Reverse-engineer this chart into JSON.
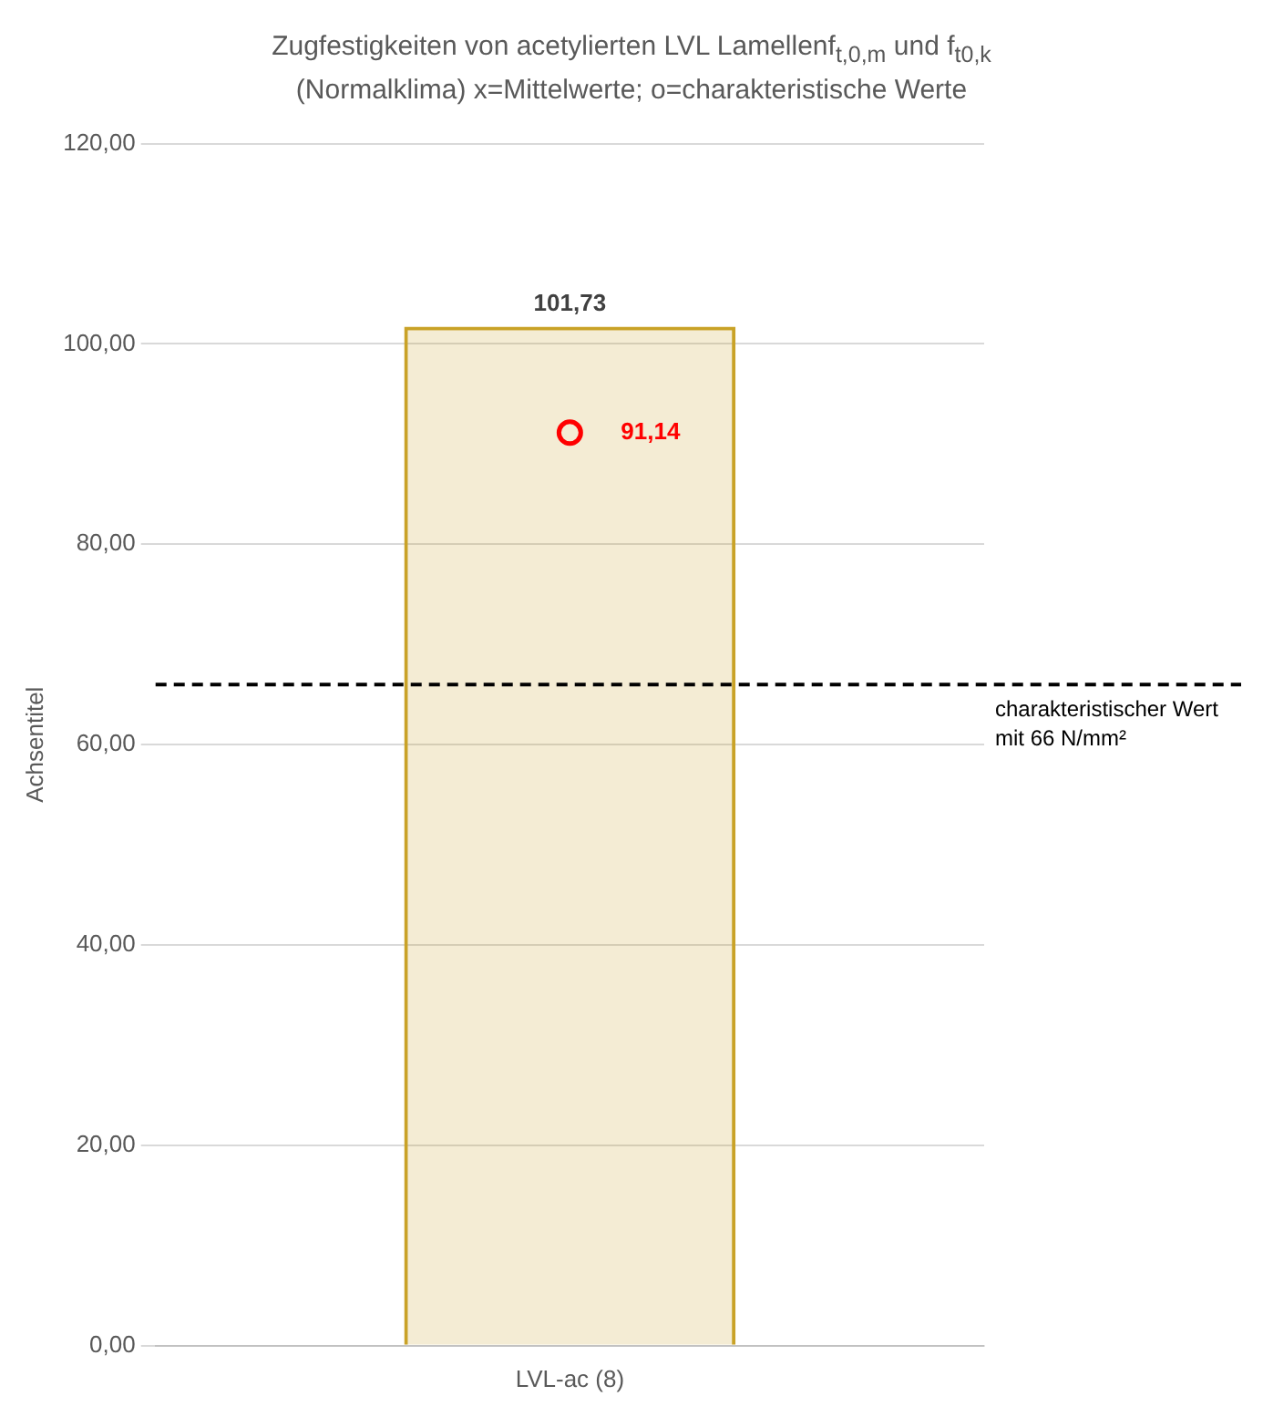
{
  "chart_data": {
    "type": "bar",
    "title": "Zugfestigkeiten von acetylierten LVL Lamellenf$_{t,0,m}$ und f$_{t0,k}$\n(Normalklima) x=Mittelwerte; o=charakteristische Werte",
    "ylabel": "Achsentitel",
    "categories": [
      "LVL-ac (8)"
    ],
    "series": [
      {
        "color": "#c9a227",
        "values": [
          101.73
        ],
        "value_labels": [
          "101,73"
        ]
      },
      {
        "type": "scatter",
        "color": "#ff0000",
        "x": [
          "LVL-ac (8)"
        ],
        "values": [
          91.14
        ],
        "value_labels": [
          "91,14"
        ],
        "marker": "circle"
      }
    ],
    "ylim": [
      0,
      120
    ],
    "yticks": [
      {
        "value": 0,
        "label": "0,00"
      },
      {
        "value": 20,
        "label": "20,00"
      },
      {
        "value": 40,
        "label": "40,00"
      },
      {
        "value": 60,
        "label": "60,00"
      },
      {
        "value": 80,
        "label": "80,00"
      },
      {
        "value": 100,
        "label": "100,00"
      },
      {
        "value": 120,
        "label": "120,00"
      }
    ],
    "grid": "y",
    "legend": false,
    "ref_lines": [
      {
        "axis": "y",
        "value": 66,
        "label": "charakteristischer Wert mit 66 N/mm²",
        "color": "#000000",
        "line_style": "dashed"
      }
    ]
  }
}
